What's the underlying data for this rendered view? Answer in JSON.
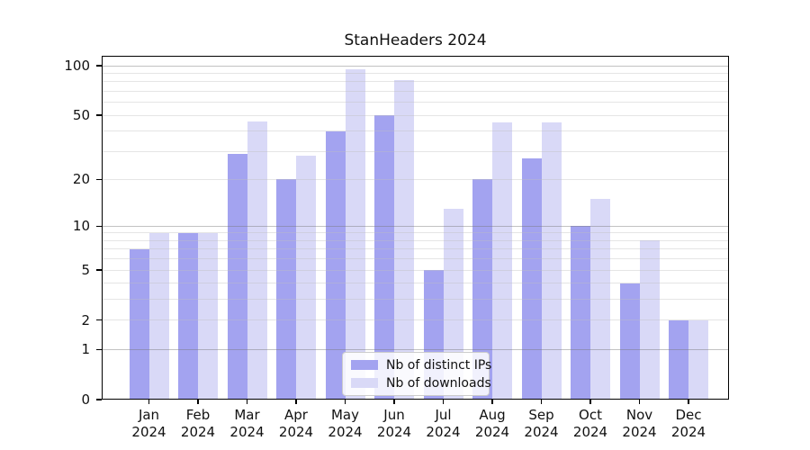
{
  "chart_data": {
    "type": "bar",
    "title": "StanHeaders 2024",
    "categories": [
      "Jan",
      "Feb",
      "Mar",
      "Apr",
      "May",
      "Jun",
      "Jul",
      "Aug",
      "Sep",
      "Oct",
      "Nov",
      "Dec"
    ],
    "category_year": "2024",
    "series": [
      {
        "name": "Nb of distinct IPs",
        "color": "#a3a3f0",
        "values": [
          7,
          9,
          29,
          20,
          40,
          50,
          5,
          20,
          27,
          10,
          4,
          2
        ]
      },
      {
        "name": "Nb of downloads",
        "color": "#d9d9f7",
        "values": [
          9,
          9,
          46,
          28,
          95,
          82,
          13,
          45,
          45,
          15,
          8,
          2
        ]
      }
    ],
    "xlabel": "",
    "ylabel": "",
    "y_scale": "log1p",
    "y_max": 115,
    "y_ticks": [
      0,
      1,
      2,
      5,
      10,
      20,
      50,
      100
    ],
    "y_major_gridlines": [
      1,
      10,
      100
    ],
    "y_minor_gridlines": [
      2,
      3,
      4,
      5,
      6,
      7,
      8,
      9,
      20,
      30,
      40,
      50,
      60,
      70,
      80,
      90
    ],
    "grid": "horizontal",
    "legend_position": "lower-center-inside"
  },
  "colors": {
    "axis": "#000000",
    "major_gridline": "rgba(120,120,120,0.45)",
    "minor_gridline": "rgba(190,190,190,0.4)",
    "text": "#111111",
    "background": "#ffffff"
  }
}
